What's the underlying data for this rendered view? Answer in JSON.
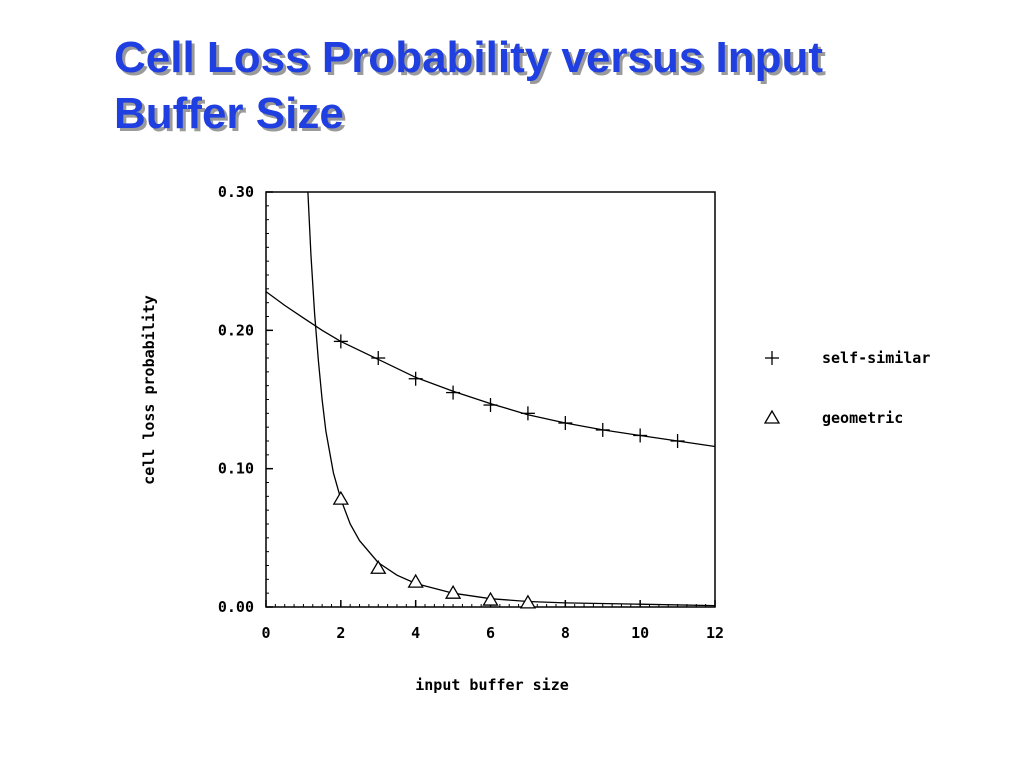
{
  "slide": {
    "title_line1": "Cell Loss Probability versus Input",
    "title_line2": "Buffer Size",
    "title_color": "#1f3fe0"
  },
  "chart_data": {
    "type": "scatter",
    "title": "",
    "xlabel": "input buffer size",
    "ylabel": "cell loss probability",
    "xlim": [
      0,
      12
    ],
    "ylim": [
      0,
      0.3
    ],
    "x_ticks": [
      "0",
      "2",
      "4",
      "6",
      "8",
      "10",
      "12"
    ],
    "y_ticks": [
      "0.00",
      "0.10",
      "0.20",
      "0.30"
    ],
    "grid": false,
    "legend_position": "right",
    "series": [
      {
        "name": "self-similar",
        "marker": "plus",
        "x": [
          2,
          3,
          4,
          5,
          6,
          7,
          8,
          9,
          10,
          11
        ],
        "y": [
          0.192,
          0.18,
          0.165,
          0.155,
          0.146,
          0.14,
          0.133,
          0.128,
          0.124,
          0.12
        ],
        "fit_curve": {
          "x": [
            0,
            0.5,
            1,
            1.5,
            2,
            3,
            4,
            5,
            6,
            7,
            8,
            9,
            10,
            11,
            12
          ],
          "y": [
            0.228,
            0.218,
            0.209,
            0.2,
            0.192,
            0.179,
            0.166,
            0.156,
            0.147,
            0.139,
            0.133,
            0.128,
            0.124,
            0.12,
            0.116
          ]
        }
      },
      {
        "name": "geometric",
        "marker": "triangle",
        "x": [
          2,
          3,
          4,
          5,
          6,
          7
        ],
        "y": [
          0.078,
          0.028,
          0.018,
          0.01,
          0.005,
          0.003
        ],
        "fit_curve": {
          "x": [
            1.12,
            1.2,
            1.3,
            1.4,
            1.5,
            1.6,
            1.8,
            2,
            2.25,
            2.5,
            3,
            3.5,
            4,
            5,
            6,
            7,
            8,
            10,
            12
          ],
          "y": [
            0.3,
            0.255,
            0.212,
            0.178,
            0.15,
            0.127,
            0.097,
            0.078,
            0.06,
            0.048,
            0.032,
            0.023,
            0.017,
            0.01,
            0.006,
            0.004,
            0.003,
            0.002,
            0.001
          ]
        }
      }
    ]
  }
}
